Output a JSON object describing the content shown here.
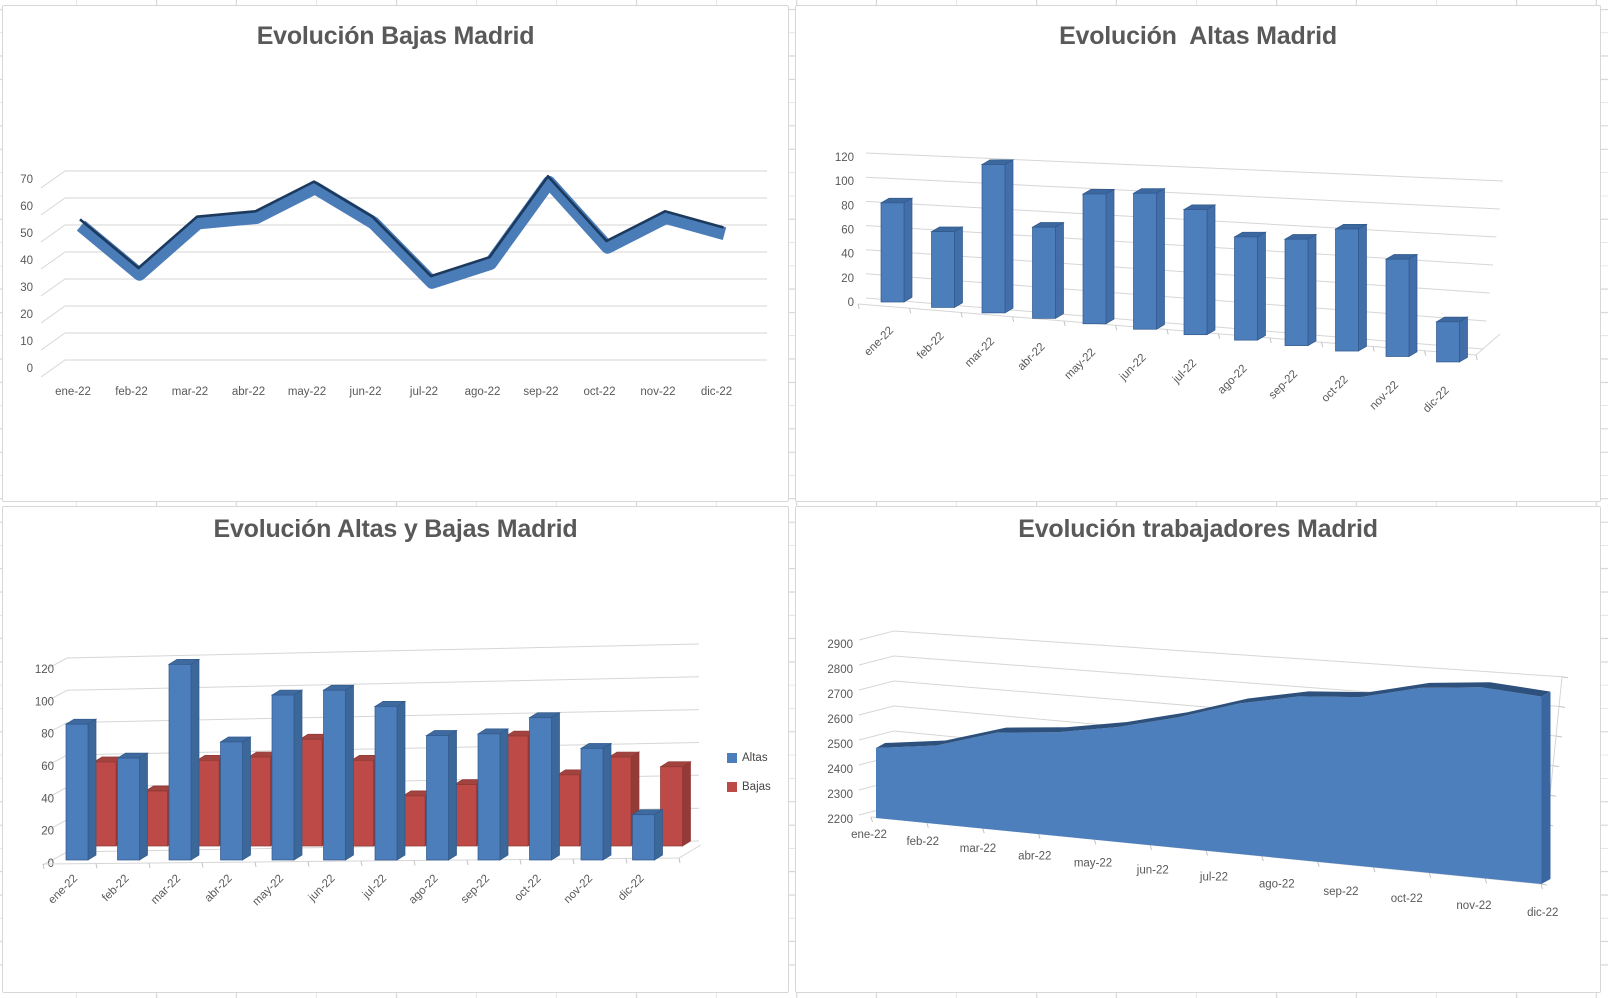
{
  "sheet": {
    "grid_color": "#d9d9d9",
    "background": "#ffffff"
  },
  "chart_data": [
    {
      "type": "line",
      "variant": "3d-ribbon",
      "title": "Evolución Bajas Madrid",
      "categories": [
        "ene-22",
        "feb-22",
        "mar-22",
        "abr-22",
        "may-22",
        "jun-22",
        "jul-22",
        "ago-22",
        "sep-22",
        "oct-22",
        "nov-22",
        "dic-22"
      ],
      "series": [
        {
          "name": "Bajas",
          "values": [
            52,
            34,
            53,
            55,
            66,
            53,
            31,
            38,
            68,
            44,
            55,
            49
          ],
          "color": "#4a7cb8",
          "edge_color": "#1c3a5e"
        }
      ],
      "ylim": [
        0,
        70
      ],
      "ytick_step": 10,
      "yticks": [
        0,
        10,
        20,
        30,
        40,
        50,
        60,
        70
      ],
      "grid": true,
      "legend": false
    },
    {
      "type": "bar",
      "variant": "3d-perspective",
      "title": "Evolución  Altas Madrid",
      "categories": [
        "ene-22",
        "feb-22",
        "mar-22",
        "abr-22",
        "may-22",
        "jun-22",
        "jul-22",
        "ago-22",
        "sep-22",
        "oct-22",
        "nov-22",
        "dic-22"
      ],
      "series": [
        {
          "name": "Altas",
          "values": [
            84,
            63,
            121,
            73,
            102,
            105,
            95,
            77,
            78,
            88,
            69,
            28
          ],
          "color": "#4d7ebc",
          "color_side": "#426fa9",
          "color_top": "#3c689f",
          "outline": "#31598c"
        }
      ],
      "ylim": [
        0,
        120
      ],
      "ytick_step": 20,
      "yticks": [
        0,
        20,
        40,
        60,
        80,
        100,
        120
      ],
      "grid": true,
      "legend": false
    },
    {
      "type": "bar",
      "variant": "3d-clustered",
      "title": "Evolución Altas y Bajas Madrid",
      "categories": [
        "ene-22",
        "feb-22",
        "mar-22",
        "abr-22",
        "may-22",
        "jun-22",
        "jul-22",
        "ago-22",
        "sep-22",
        "oct-22",
        "nov-22",
        "dic-22"
      ],
      "series": [
        {
          "name": "Altas",
          "values": [
            84,
            63,
            121,
            73,
            102,
            105,
            95,
            77,
            78,
            88,
            69,
            28
          ],
          "color": "#4d7ebc",
          "color_side": "#3c6899",
          "color_top": "#3f6a9f",
          "outline": "#31598c"
        },
        {
          "name": "Bajas",
          "values": [
            52,
            34,
            53,
            55,
            66,
            53,
            31,
            38,
            68,
            44,
            55,
            49
          ],
          "color": "#bd4a47",
          "color_side": "#943a37",
          "color_top": "#a24340",
          "outline": "#8e3835"
        }
      ],
      "ylim": [
        0,
        120
      ],
      "ytick_step": 20,
      "yticks": [
        0,
        20,
        40,
        60,
        80,
        100,
        120
      ],
      "grid": true,
      "legend": "right"
    },
    {
      "type": "area",
      "variant": "3d-perspective",
      "title": "Evolución trabajadores Madrid",
      "categories": [
        "ene-22",
        "feb-22",
        "mar-22",
        "abr-22",
        "may-22",
        "jun-22",
        "jul-22",
        "ago-22",
        "sep-22",
        "oct-22",
        "nov-22",
        "dic-22"
      ],
      "series": [
        {
          "name": "Trabajadores",
          "values": [
            2480,
            2509,
            2577,
            2595,
            2631,
            2683,
            2747,
            2786,
            2796,
            2840,
            2854,
            2833
          ],
          "color": "#4c7fbc",
          "ribbon_color": "#2d517c",
          "side_color": "#3a67a2"
        }
      ],
      "ylim": [
        2200,
        2900
      ],
      "ytick_step": 100,
      "yticks": [
        2200,
        2300,
        2400,
        2500,
        2600,
        2700,
        2800,
        2900
      ],
      "grid": true,
      "legend": false
    }
  ]
}
